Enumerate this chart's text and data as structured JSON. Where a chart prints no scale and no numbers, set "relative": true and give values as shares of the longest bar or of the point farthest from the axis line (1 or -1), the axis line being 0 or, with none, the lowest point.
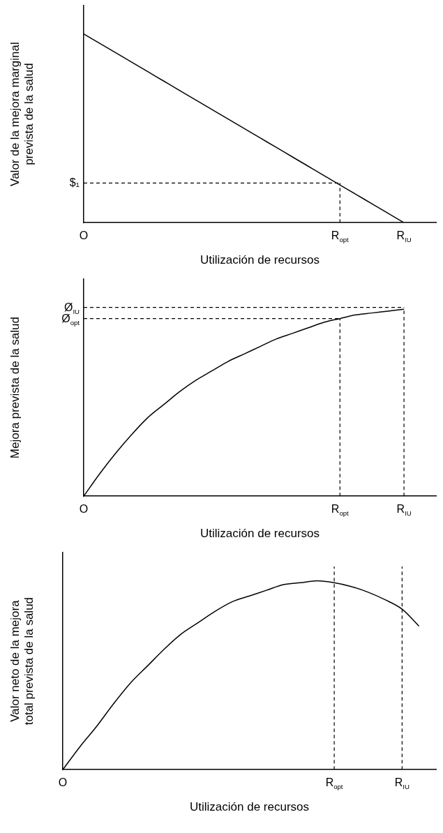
{
  "chart_data": [
    {
      "type": "line",
      "xlabel": "Utilización de recursos",
      "ylabel": "Valor de la mejora marginal prevista de la salud",
      "relative": true,
      "marker": "none",
      "line_style": "solid",
      "grid": false,
      "legend": false,
      "categories": [
        "O",
        null,
        null,
        null,
        null,
        null,
        null,
        null,
        null,
        null,
        null,
        null,
        null,
        null,
        null,
        null,
        "R$_{opt}$",
        null,
        null,
        null,
        "R$_{IU}$",
        null,
        null
      ],
      "series": [
        {
          "color": "#000000",
          "values": [
            1,
            0.95,
            0.9,
            0.85,
            0.8,
            0.75,
            0.7,
            0.65,
            0.6,
            0.55,
            0.5,
            0.45,
            0.4,
            0.35,
            0.3,
            0.25,
            0.2,
            0.15,
            0.1,
            0.05,
            0,
            null,
            null
          ]
        }
      ],
      "ref_lines": [
        {
          "axis": "x",
          "value": "R$_{opt}$",
          "line_style": "dashed",
          "color": "#000000"
        },
        {
          "axis": "y",
          "value": 0.21,
          "label": "$₁",
          "line_style": "dashed",
          "color": "#000000"
        }
      ]
    },
    {
      "type": "line",
      "xlabel": "Utilización de recursos",
      "ylabel": "Mejora prevista de la salud",
      "relative": true,
      "marker": "none",
      "line_style": "solid",
      "grid": false,
      "legend": false,
      "categories": [
        "O",
        null,
        null,
        null,
        null,
        null,
        null,
        null,
        null,
        null,
        null,
        null,
        null,
        null,
        null,
        null,
        "R$_{opt}$",
        null,
        null,
        null,
        "R$_{IU}$",
        null,
        null
      ],
      "series": [
        {
          "color": "#000000",
          "values": [
            0,
            0.12,
            0.23,
            0.33,
            0.42,
            0.49,
            0.56,
            0.62,
            0.67,
            0.72,
            0.76,
            0.8,
            0.84,
            0.87,
            0.9,
            0.93,
            0.95,
            0.97,
            0.98,
            0.99,
            1,
            null,
            null
          ]
        }
      ],
      "ref_lines": [
        {
          "axis": "x",
          "value": "R$_{opt}$",
          "line_style": "dashed",
          "color": "#000000"
        },
        {
          "axis": "x",
          "value": "R$_{IU}$",
          "line_style": "dashed",
          "color": "#000000"
        },
        {
          "axis": "y",
          "value": 0.95,
          "label": "Ø$_{opt}$",
          "line_style": "dashed",
          "color": "#000000"
        },
        {
          "axis": "y",
          "value": 1.01,
          "label": "Ø$_{IU}$",
          "line_style": "dashed",
          "color": "#000000"
        }
      ]
    },
    {
      "type": "line",
      "xlabel": "Utilización de recursos",
      "ylabel": "Valor neto de la mejora total prevista de la salud",
      "relative": true,
      "marker": "none",
      "line_style": "solid",
      "grid": false,
      "legend": false,
      "categories": [
        "O",
        null,
        null,
        null,
        null,
        null,
        null,
        null,
        null,
        null,
        null,
        null,
        null,
        null,
        null,
        null,
        "R$_{opt}$",
        null,
        null,
        null,
        "R$_{IU}$",
        null,
        null
      ],
      "series": [
        {
          "color": "#000000",
          "values": [
            0,
            0.12,
            0.23,
            0.35,
            0.46,
            0.55,
            0.64,
            0.72,
            0.78,
            0.84,
            0.89,
            0.92,
            0.95,
            0.98,
            0.99,
            1,
            0.99,
            0.97,
            0.94,
            0.9,
            0.85,
            0.76,
            null
          ]
        }
      ],
      "ref_lines": [
        {
          "axis": "x",
          "value": "R$_{opt}$",
          "line_style": "dashed",
          "color": "#000000"
        },
        {
          "axis": "x",
          "value": "R$_{IU}$",
          "line_style": "dashed",
          "color": "#000000"
        }
      ]
    }
  ]
}
